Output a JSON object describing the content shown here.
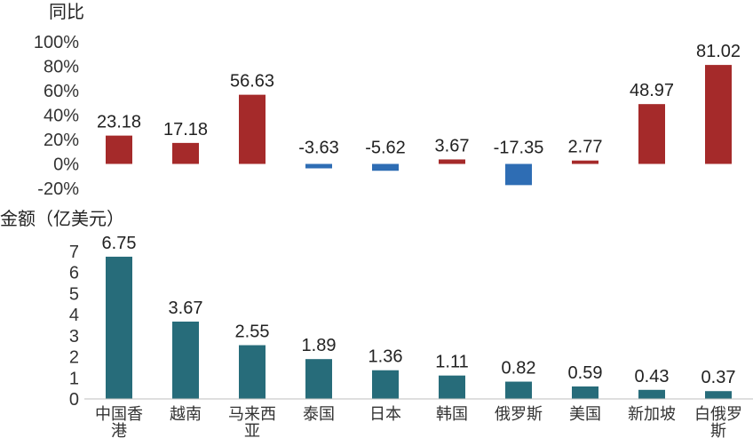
{
  "chart_data": [
    {
      "type": "bar",
      "ylabel": "同比",
      "categories": [
        "中国香港",
        "越南",
        "马来西亚",
        "泰国",
        "日本",
        "韩国",
        "俄罗斯",
        "美国",
        "新加坡",
        "白俄罗斯"
      ],
      "values": [
        23.18,
        17.18,
        56.63,
        -3.63,
        -5.62,
        3.67,
        -17.35,
        2.77,
        48.97,
        81.02
      ],
      "value_labels": [
        "23.18",
        "17.18",
        "56.63",
        "-3.63",
        "-5.62",
        "3.67",
        "-17.35",
        "2.77",
        "48.97",
        "81.02"
      ],
      "ylim": [
        -20,
        100
      ],
      "yticks": [
        "-20%",
        "0%",
        "20%",
        "40%",
        "60%",
        "80%",
        "100%"
      ],
      "colors": {
        "positive": "#A52A2A",
        "negative": "#2E6DB4"
      },
      "grid": false
    },
    {
      "type": "bar",
      "ylabel": "金额（亿美元）",
      "categories": [
        "中国香港",
        "越南",
        "马来西亚",
        "泰国",
        "日本",
        "韩国",
        "俄罗斯",
        "美国",
        "新加坡",
        "白俄罗斯"
      ],
      "category_labels": [
        [
          "中国香",
          "港"
        ],
        [
          "越南"
        ],
        [
          "马来西",
          "亚"
        ],
        [
          "泰国"
        ],
        [
          "日本"
        ],
        [
          "韩国"
        ],
        [
          "俄罗斯"
        ],
        [
          "美国"
        ],
        [
          "新加坡"
        ],
        [
          "白俄罗",
          "斯"
        ]
      ],
      "values": [
        6.75,
        3.67,
        2.55,
        1.89,
        1.36,
        1.11,
        0.82,
        0.59,
        0.43,
        0.37
      ],
      "value_labels": [
        "6.75",
        "3.67",
        "2.55",
        "1.89",
        "1.36",
        "1.11",
        "0.82",
        "0.59",
        "0.43",
        "0.37"
      ],
      "ylim": [
        0,
        7
      ],
      "yticks": [
        "0",
        "1",
        "2",
        "3",
        "4",
        "5",
        "6",
        "7"
      ],
      "colors": {
        "bar": "#276C7A"
      },
      "grid": false
    }
  ]
}
